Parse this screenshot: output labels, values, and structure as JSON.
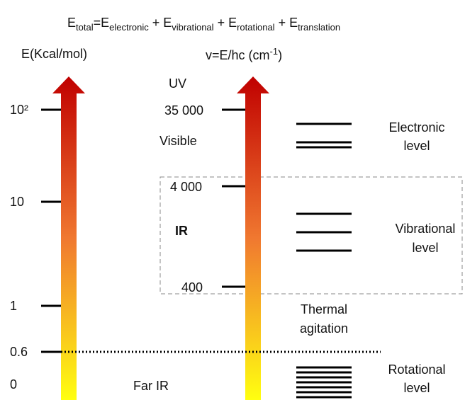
{
  "equation": [
    {
      "text": "E",
      "sub": "total"
    },
    {
      "text": "=E",
      "sub": "electronic"
    },
    {
      "text": " + E",
      "sub": "vibrational"
    },
    {
      "text": " + E",
      "sub": "rotational"
    },
    {
      "text": " + E",
      "sub": "translation"
    }
  ],
  "left_axis": {
    "title": "E(Kcal/mol)",
    "ticks": [
      "10²",
      "10",
      "1",
      "0.6",
      "0"
    ]
  },
  "right_axis": {
    "title": {
      "text": "v=E/hc (cm",
      "sup": "-1",
      "end": ")"
    },
    "ticks": [
      "35 000",
      "4 000",
      "400"
    ]
  },
  "regions": [
    "UV",
    "Visible",
    "IR",
    "Far IR"
  ],
  "levels": {
    "electronic": [
      "Electronic",
      "level"
    ],
    "vibrational": [
      "Vibrational",
      "level"
    ],
    "thermal": [
      "Thermal",
      "agitation"
    ],
    "rotational": [
      "Rotational",
      "level"
    ]
  }
}
